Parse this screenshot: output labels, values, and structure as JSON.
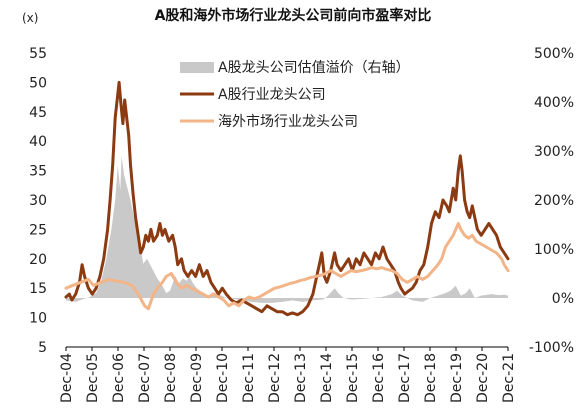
{
  "chart_data": {
    "type": "line",
    "title": "A股和海外市场行业龙头公司前向市盈率对比",
    "y_unit": "(x)",
    "ylim_left": [
      5,
      55
    ],
    "yticks_left": [
      "5",
      "10",
      "15",
      "20",
      "25",
      "30",
      "35",
      "40",
      "45",
      "50",
      "55"
    ],
    "ylim_right": [
      -100,
      500
    ],
    "yticks_right": [
      "-100%",
      "0%",
      "100%",
      "200%",
      "300%",
      "400%",
      "500%"
    ],
    "xticks": [
      "Dec-04",
      "Dec-05",
      "Dec-06",
      "Dec-07",
      "Dec-08",
      "Dec-09",
      "Dec-10",
      "Dec-11",
      "Dec-12",
      "Dec-13",
      "Dec-14",
      "Dec-15",
      "Dec-16",
      "Dec-17",
      "Dec-18",
      "Dec-19",
      "Dec-20",
      "Dec-21"
    ],
    "x_start": 2004.92,
    "x_end": 2022.25,
    "legend_position": "top-center",
    "grid": false,
    "series": [
      {
        "name": "A股龙头公司估值溢价（右轴）",
        "axis": "right",
        "kind": "area",
        "color": "#c9c9c9",
        "points": [
          [
            2004.92,
            -5
          ],
          [
            2005.3,
            -8
          ],
          [
            2005.6,
            -2
          ],
          [
            2005.85,
            2
          ],
          [
            2006.1,
            10
          ],
          [
            2006.3,
            35
          ],
          [
            2006.5,
            80
          ],
          [
            2006.7,
            140
          ],
          [
            2006.85,
            200
          ],
          [
            2006.95,
            270
          ],
          [
            2007.05,
            220
          ],
          [
            2007.1,
            290
          ],
          [
            2007.2,
            250
          ],
          [
            2007.3,
            230
          ],
          [
            2007.45,
            200
          ],
          [
            2007.6,
            160
          ],
          [
            2007.75,
            120
          ],
          [
            2007.85,
            100
          ],
          [
            2007.95,
            70
          ],
          [
            2008.1,
            80
          ],
          [
            2008.3,
            60
          ],
          [
            2008.5,
            40
          ],
          [
            2008.7,
            25
          ],
          [
            2008.85,
            10
          ],
          [
            2009.0,
            15
          ],
          [
            2009.2,
            45
          ],
          [
            2009.35,
            30
          ],
          [
            2009.5,
            40
          ],
          [
            2009.65,
            35
          ],
          [
            2009.75,
            45
          ],
          [
            2009.9,
            30
          ],
          [
            2010.05,
            20
          ],
          [
            2010.3,
            10
          ],
          [
            2010.5,
            5
          ],
          [
            2010.7,
            12
          ],
          [
            2010.9,
            8
          ],
          [
            2011.2,
            0
          ],
          [
            2011.5,
            -2
          ],
          [
            2011.8,
            -5
          ],
          [
            2012.2,
            -8
          ],
          [
            2012.6,
            -10
          ],
          [
            2013.0,
            -10
          ],
          [
            2013.4,
            -8
          ],
          [
            2013.8,
            -5
          ],
          [
            2014.2,
            -8
          ],
          [
            2014.6,
            -5
          ],
          [
            2015.0,
            -3
          ],
          [
            2015.2,
            5
          ],
          [
            2015.45,
            20
          ],
          [
            2015.6,
            10
          ],
          [
            2015.8,
            0
          ],
          [
            2016.1,
            -3
          ],
          [
            2016.5,
            -2
          ],
          [
            2016.9,
            0
          ],
          [
            2017.3,
            2
          ],
          [
            2017.7,
            8
          ],
          [
            2017.9,
            15
          ],
          [
            2018.1,
            5
          ],
          [
            2018.5,
            -5
          ],
          [
            2018.9,
            -8
          ],
          [
            2019.2,
            0
          ],
          [
            2019.5,
            5
          ],
          [
            2019.8,
            10
          ],
          [
            2020.0,
            15
          ],
          [
            2020.2,
            25
          ],
          [
            2020.4,
            5
          ],
          [
            2020.6,
            10
          ],
          [
            2020.75,
            20
          ],
          [
            2020.95,
            0
          ],
          [
            2021.2,
            5
          ],
          [
            2021.6,
            8
          ],
          [
            2021.9,
            6
          ],
          [
            2022.1,
            7
          ],
          [
            2022.25,
            5
          ]
        ]
      },
      {
        "name": "A股行业龙头公司",
        "axis": "left",
        "kind": "line",
        "color": "#8b3a12",
        "points": [
          [
            2004.92,
            13.5
          ],
          [
            2005.05,
            14
          ],
          [
            2005.15,
            13
          ],
          [
            2005.3,
            14
          ],
          [
            2005.45,
            16
          ],
          [
            2005.55,
            19
          ],
          [
            2005.65,
            17
          ],
          [
            2005.8,
            15
          ],
          [
            2005.95,
            14
          ],
          [
            2006.1,
            15
          ],
          [
            2006.25,
            17
          ],
          [
            2006.4,
            20
          ],
          [
            2006.55,
            25
          ],
          [
            2006.65,
            30
          ],
          [
            2006.75,
            36
          ],
          [
            2006.85,
            44
          ],
          [
            2006.95,
            48
          ],
          [
            2007.0,
            50
          ],
          [
            2007.08,
            46
          ],
          [
            2007.15,
            43
          ],
          [
            2007.22,
            47
          ],
          [
            2007.3,
            44
          ],
          [
            2007.38,
            41
          ],
          [
            2007.45,
            36
          ],
          [
            2007.55,
            31
          ],
          [
            2007.65,
            27
          ],
          [
            2007.75,
            24
          ],
          [
            2007.85,
            21
          ],
          [
            2007.95,
            22
          ],
          [
            2008.05,
            24
          ],
          [
            2008.15,
            23
          ],
          [
            2008.25,
            25
          ],
          [
            2008.35,
            23
          ],
          [
            2008.5,
            24
          ],
          [
            2008.6,
            26
          ],
          [
            2008.7,
            24
          ],
          [
            2008.8,
            25
          ],
          [
            2008.95,
            23
          ],
          [
            2009.1,
            24
          ],
          [
            2009.2,
            22
          ],
          [
            2009.3,
            19
          ],
          [
            2009.45,
            20
          ],
          [
            2009.55,
            18
          ],
          [
            2009.7,
            17
          ],
          [
            2009.85,
            18
          ],
          [
            2010.0,
            17
          ],
          [
            2010.15,
            19
          ],
          [
            2010.3,
            17
          ],
          [
            2010.45,
            18
          ],
          [
            2010.6,
            16
          ],
          [
            2010.75,
            15
          ],
          [
            2010.9,
            14
          ],
          [
            2011.05,
            15
          ],
          [
            2011.2,
            14
          ],
          [
            2011.4,
            13
          ],
          [
            2011.6,
            12.5
          ],
          [
            2011.8,
            13
          ],
          [
            2012.0,
            12.5
          ],
          [
            2012.2,
            12
          ],
          [
            2012.4,
            11.5
          ],
          [
            2012.6,
            11
          ],
          [
            2012.8,
            12
          ],
          [
            2013.0,
            11.5
          ],
          [
            2013.2,
            11
          ],
          [
            2013.4,
            11
          ],
          [
            2013.6,
            10.5
          ],
          [
            2013.8,
            10.8
          ],
          [
            2014.0,
            10.5
          ],
          [
            2014.2,
            11
          ],
          [
            2014.4,
            12
          ],
          [
            2014.6,
            14
          ],
          [
            2014.75,
            17
          ],
          [
            2014.85,
            19
          ],
          [
            2014.95,
            21
          ],
          [
            2015.05,
            17
          ],
          [
            2015.15,
            16
          ],
          [
            2015.3,
            18
          ],
          [
            2015.45,
            21
          ],
          [
            2015.55,
            19
          ],
          [
            2015.7,
            18
          ],
          [
            2015.85,
            19
          ],
          [
            2016.0,
            20
          ],
          [
            2016.15,
            18
          ],
          [
            2016.3,
            20
          ],
          [
            2016.45,
            19
          ],
          [
            2016.6,
            21
          ],
          [
            2016.75,
            20
          ],
          [
            2016.9,
            19
          ],
          [
            2017.05,
            21
          ],
          [
            2017.2,
            20
          ],
          [
            2017.35,
            22
          ],
          [
            2017.5,
            20
          ],
          [
            2017.65,
            19
          ],
          [
            2017.8,
            18
          ],
          [
            2017.95,
            16
          ],
          [
            2018.05,
            15
          ],
          [
            2018.2,
            14
          ],
          [
            2018.35,
            14.5
          ],
          [
            2018.5,
            15
          ],
          [
            2018.65,
            16
          ],
          [
            2018.8,
            18
          ],
          [
            2018.95,
            19
          ],
          [
            2019.1,
            22
          ],
          [
            2019.25,
            26
          ],
          [
            2019.4,
            28
          ],
          [
            2019.55,
            27
          ],
          [
            2019.7,
            30
          ],
          [
            2019.85,
            29
          ],
          [
            2019.95,
            28
          ],
          [
            2020.1,
            32
          ],
          [
            2020.2,
            30
          ],
          [
            2020.3,
            35
          ],
          [
            2020.38,
            37.5
          ],
          [
            2020.45,
            35
          ],
          [
            2020.55,
            30
          ],
          [
            2020.65,
            28
          ],
          [
            2020.75,
            27
          ],
          [
            2020.85,
            29
          ],
          [
            2020.95,
            27
          ],
          [
            2021.05,
            25
          ],
          [
            2021.2,
            24
          ],
          [
            2021.35,
            25
          ],
          [
            2021.5,
            26
          ],
          [
            2021.65,
            25
          ],
          [
            2021.8,
            24
          ],
          [
            2021.95,
            22
          ],
          [
            2022.1,
            21
          ],
          [
            2022.25,
            20
          ]
        ]
      },
      {
        "name": "海外市场行业龙头公司",
        "axis": "left",
        "kind": "line",
        "color": "#f3b487",
        "points": [
          [
            2004.92,
            15
          ],
          [
            2005.2,
            15.5
          ],
          [
            2005.5,
            16
          ],
          [
            2005.8,
            16.5
          ],
          [
            2006.0,
            15.5
          ],
          [
            2006.3,
            16
          ],
          [
            2006.6,
            16.5
          ],
          [
            2006.9,
            16.2
          ],
          [
            2007.2,
            16
          ],
          [
            2007.5,
            15.5
          ],
          [
            2007.75,
            14
          ],
          [
            2008.0,
            12
          ],
          [
            2008.15,
            11.5
          ],
          [
            2008.35,
            14
          ],
          [
            2008.5,
            15
          ],
          [
            2008.7,
            16
          ],
          [
            2008.85,
            17
          ],
          [
            2009.05,
            17.5
          ],
          [
            2009.25,
            16
          ],
          [
            2009.45,
            15
          ],
          [
            2009.65,
            15.5
          ],
          [
            2009.85,
            15
          ],
          [
            2010.05,
            14.5
          ],
          [
            2010.3,
            14
          ],
          [
            2010.5,
            13.5
          ],
          [
            2010.7,
            14
          ],
          [
            2010.9,
            13.5
          ],
          [
            2011.1,
            13
          ],
          [
            2011.3,
            12
          ],
          [
            2011.5,
            12.5
          ],
          [
            2011.7,
            12
          ],
          [
            2011.9,
            13
          ],
          [
            2012.1,
            13.5
          ],
          [
            2012.3,
            13.2
          ],
          [
            2012.5,
            13.5
          ],
          [
            2012.7,
            14
          ],
          [
            2012.9,
            14.5
          ],
          [
            2013.1,
            15
          ],
          [
            2013.3,
            15.2
          ],
          [
            2013.5,
            15.5
          ],
          [
            2013.7,
            15.8
          ],
          [
            2013.9,
            16
          ],
          [
            2014.1,
            16.3
          ],
          [
            2014.3,
            16.5
          ],
          [
            2014.5,
            16.8
          ],
          [
            2014.7,
            17
          ],
          [
            2014.9,
            17.2
          ],
          [
            2015.1,
            17.5
          ],
          [
            2015.3,
            18
          ],
          [
            2015.5,
            17.5
          ],
          [
            2015.7,
            17
          ],
          [
            2015.9,
            17.5
          ],
          [
            2016.1,
            18
          ],
          [
            2016.3,
            17.8
          ],
          [
            2016.5,
            18
          ],
          [
            2016.7,
            18.2
          ],
          [
            2016.9,
            18.5
          ],
          [
            2017.1,
            18.3
          ],
          [
            2017.3,
            18.5
          ],
          [
            2017.5,
            18.2
          ],
          [
            2017.7,
            18
          ],
          [
            2017.9,
            17.5
          ],
          [
            2018.1,
            16.5
          ],
          [
            2018.3,
            16
          ],
          [
            2018.5,
            16.5
          ],
          [
            2018.7,
            17
          ],
          [
            2018.9,
            16.5
          ],
          [
            2019.1,
            17
          ],
          [
            2019.3,
            18
          ],
          [
            2019.5,
            19
          ],
          [
            2019.65,
            20
          ],
          [
            2019.8,
            22
          ],
          [
            2019.95,
            23
          ],
          [
            2020.1,
            24
          ],
          [
            2020.2,
            25
          ],
          [
            2020.3,
            26
          ],
          [
            2020.4,
            25
          ],
          [
            2020.55,
            24
          ],
          [
            2020.7,
            23.5
          ],
          [
            2020.85,
            24
          ],
          [
            2021.0,
            23
          ],
          [
            2021.2,
            22.5
          ],
          [
            2021.4,
            22
          ],
          [
            2021.6,
            21.5
          ],
          [
            2021.8,
            21
          ],
          [
            2022.0,
            20
          ],
          [
            2022.1,
            19
          ],
          [
            2022.25,
            18
          ]
        ]
      }
    ]
  }
}
